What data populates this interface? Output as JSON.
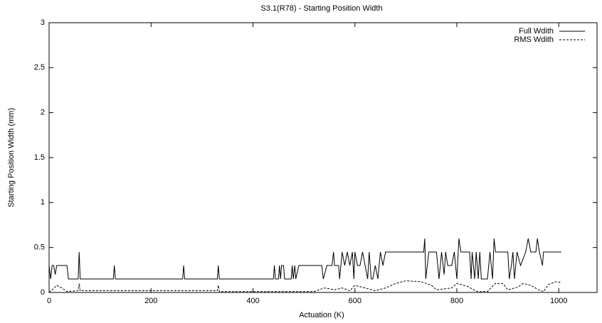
{
  "chart_data": {
    "type": "line",
    "title": "S3.1(R78) - Starting Position Width",
    "x_label": "Actuation (K)",
    "y_label": "Starting Position Width (mm)",
    "xlim": [
      0,
      1075
    ],
    "ylim": [
      0,
      3
    ],
    "xticks": [
      0,
      200,
      400,
      600,
      800,
      1000
    ],
    "yticks": [
      0,
      0.5,
      1,
      1.5,
      2,
      2.5,
      3
    ],
    "legend": "top-right",
    "series": [
      {
        "name": "Full Wdith",
        "color": "#000000",
        "dash": "solid",
        "x": [
          0,
          3,
          6,
          9,
          12,
          15,
          35,
          38,
          57,
          59,
          61,
          126,
          128,
          130,
          262,
          264,
          266,
          330,
          332,
          334,
          440,
          442,
          444,
          450,
          452,
          454,
          456,
          460,
          462,
          475,
          477,
          479,
          482,
          484,
          490,
          535,
          538,
          545,
          555,
          558,
          560,
          568,
          570,
          575,
          580,
          585,
          590,
          595,
          598,
          600,
          605,
          610,
          615,
          620,
          625,
          628,
          632,
          635,
          640,
          645,
          650,
          655,
          660,
          735,
          737,
          739,
          745,
          760,
          765,
          770,
          775,
          778,
          782,
          790,
          795,
          800,
          804,
          808,
          825,
          828,
          830,
          835,
          838,
          842,
          845,
          848,
          860,
          865,
          870,
          873,
          876,
          900,
          903,
          907,
          910,
          913,
          918,
          925,
          935,
          940,
          945,
          955,
          958,
          962,
          968,
          970,
          1005
        ],
        "values": [
          0.3,
          0.15,
          0.3,
          0.3,
          0.2,
          0.3,
          0.3,
          0.15,
          0.15,
          0.45,
          0.15,
          0.15,
          0.3,
          0.15,
          0.15,
          0.3,
          0.15,
          0.15,
          0.3,
          0.15,
          0.15,
          0.3,
          0.15,
          0.15,
          0.3,
          0.15,
          0.3,
          0.3,
          0.15,
          0.15,
          0.3,
          0.15,
          0.3,
          0.15,
          0.3,
          0.3,
          0.15,
          0.3,
          0.3,
          0.45,
          0.3,
          0.3,
          0.15,
          0.45,
          0.3,
          0.45,
          0.3,
          0.45,
          0.15,
          0.45,
          0.3,
          0.3,
          0.45,
          0.3,
          0.15,
          0.45,
          0.15,
          0.15,
          0.3,
          0.15,
          0.45,
          0.3,
          0.45,
          0.45,
          0.6,
          0.15,
          0.45,
          0.45,
          0.15,
          0.45,
          0.2,
          0.45,
          0.3,
          0.3,
          0.45,
          0.15,
          0.6,
          0.45,
          0.45,
          0.15,
          0.45,
          0.15,
          0.45,
          0.15,
          0.45,
          0.15,
          0.15,
          0.45,
          0.15,
          0.6,
          0.45,
          0.45,
          0.15,
          0.3,
          0.45,
          0.15,
          0.45,
          0.3,
          0.45,
          0.6,
          0.45,
          0.45,
          0.6,
          0.45,
          0.3,
          0.45,
          0.45
        ]
      },
      {
        "name": "RMS Wdith",
        "color": "#000000",
        "dash": "dashed",
        "x": [
          0,
          10,
          15,
          25,
          35,
          57,
          59,
          61,
          330,
          332,
          334,
          440,
          520,
          540,
          560,
          575,
          590,
          600,
          620,
          640,
          660,
          680,
          700,
          730,
          750,
          760,
          790,
          800,
          820,
          840,
          860,
          875,
          890,
          900,
          920,
          930,
          945,
          960,
          970,
          980,
          995,
          1005
        ],
        "values": [
          0,
          0.05,
          0.08,
          0.05,
          0.01,
          0.02,
          0.1,
          0.02,
          0.02,
          0.08,
          0.01,
          0.01,
          0.01,
          0.05,
          0.03,
          0.05,
          0.02,
          0.08,
          0.05,
          0.02,
          0.05,
          0.1,
          0.13,
          0.12,
          0.08,
          0.03,
          0.05,
          0.1,
          0.07,
          0.01,
          0.01,
          0.1,
          0.1,
          0.03,
          0.06,
          0.1,
          0.08,
          0.03,
          0.01,
          0.09,
          0.12,
          0.11
        ]
      }
    ]
  }
}
